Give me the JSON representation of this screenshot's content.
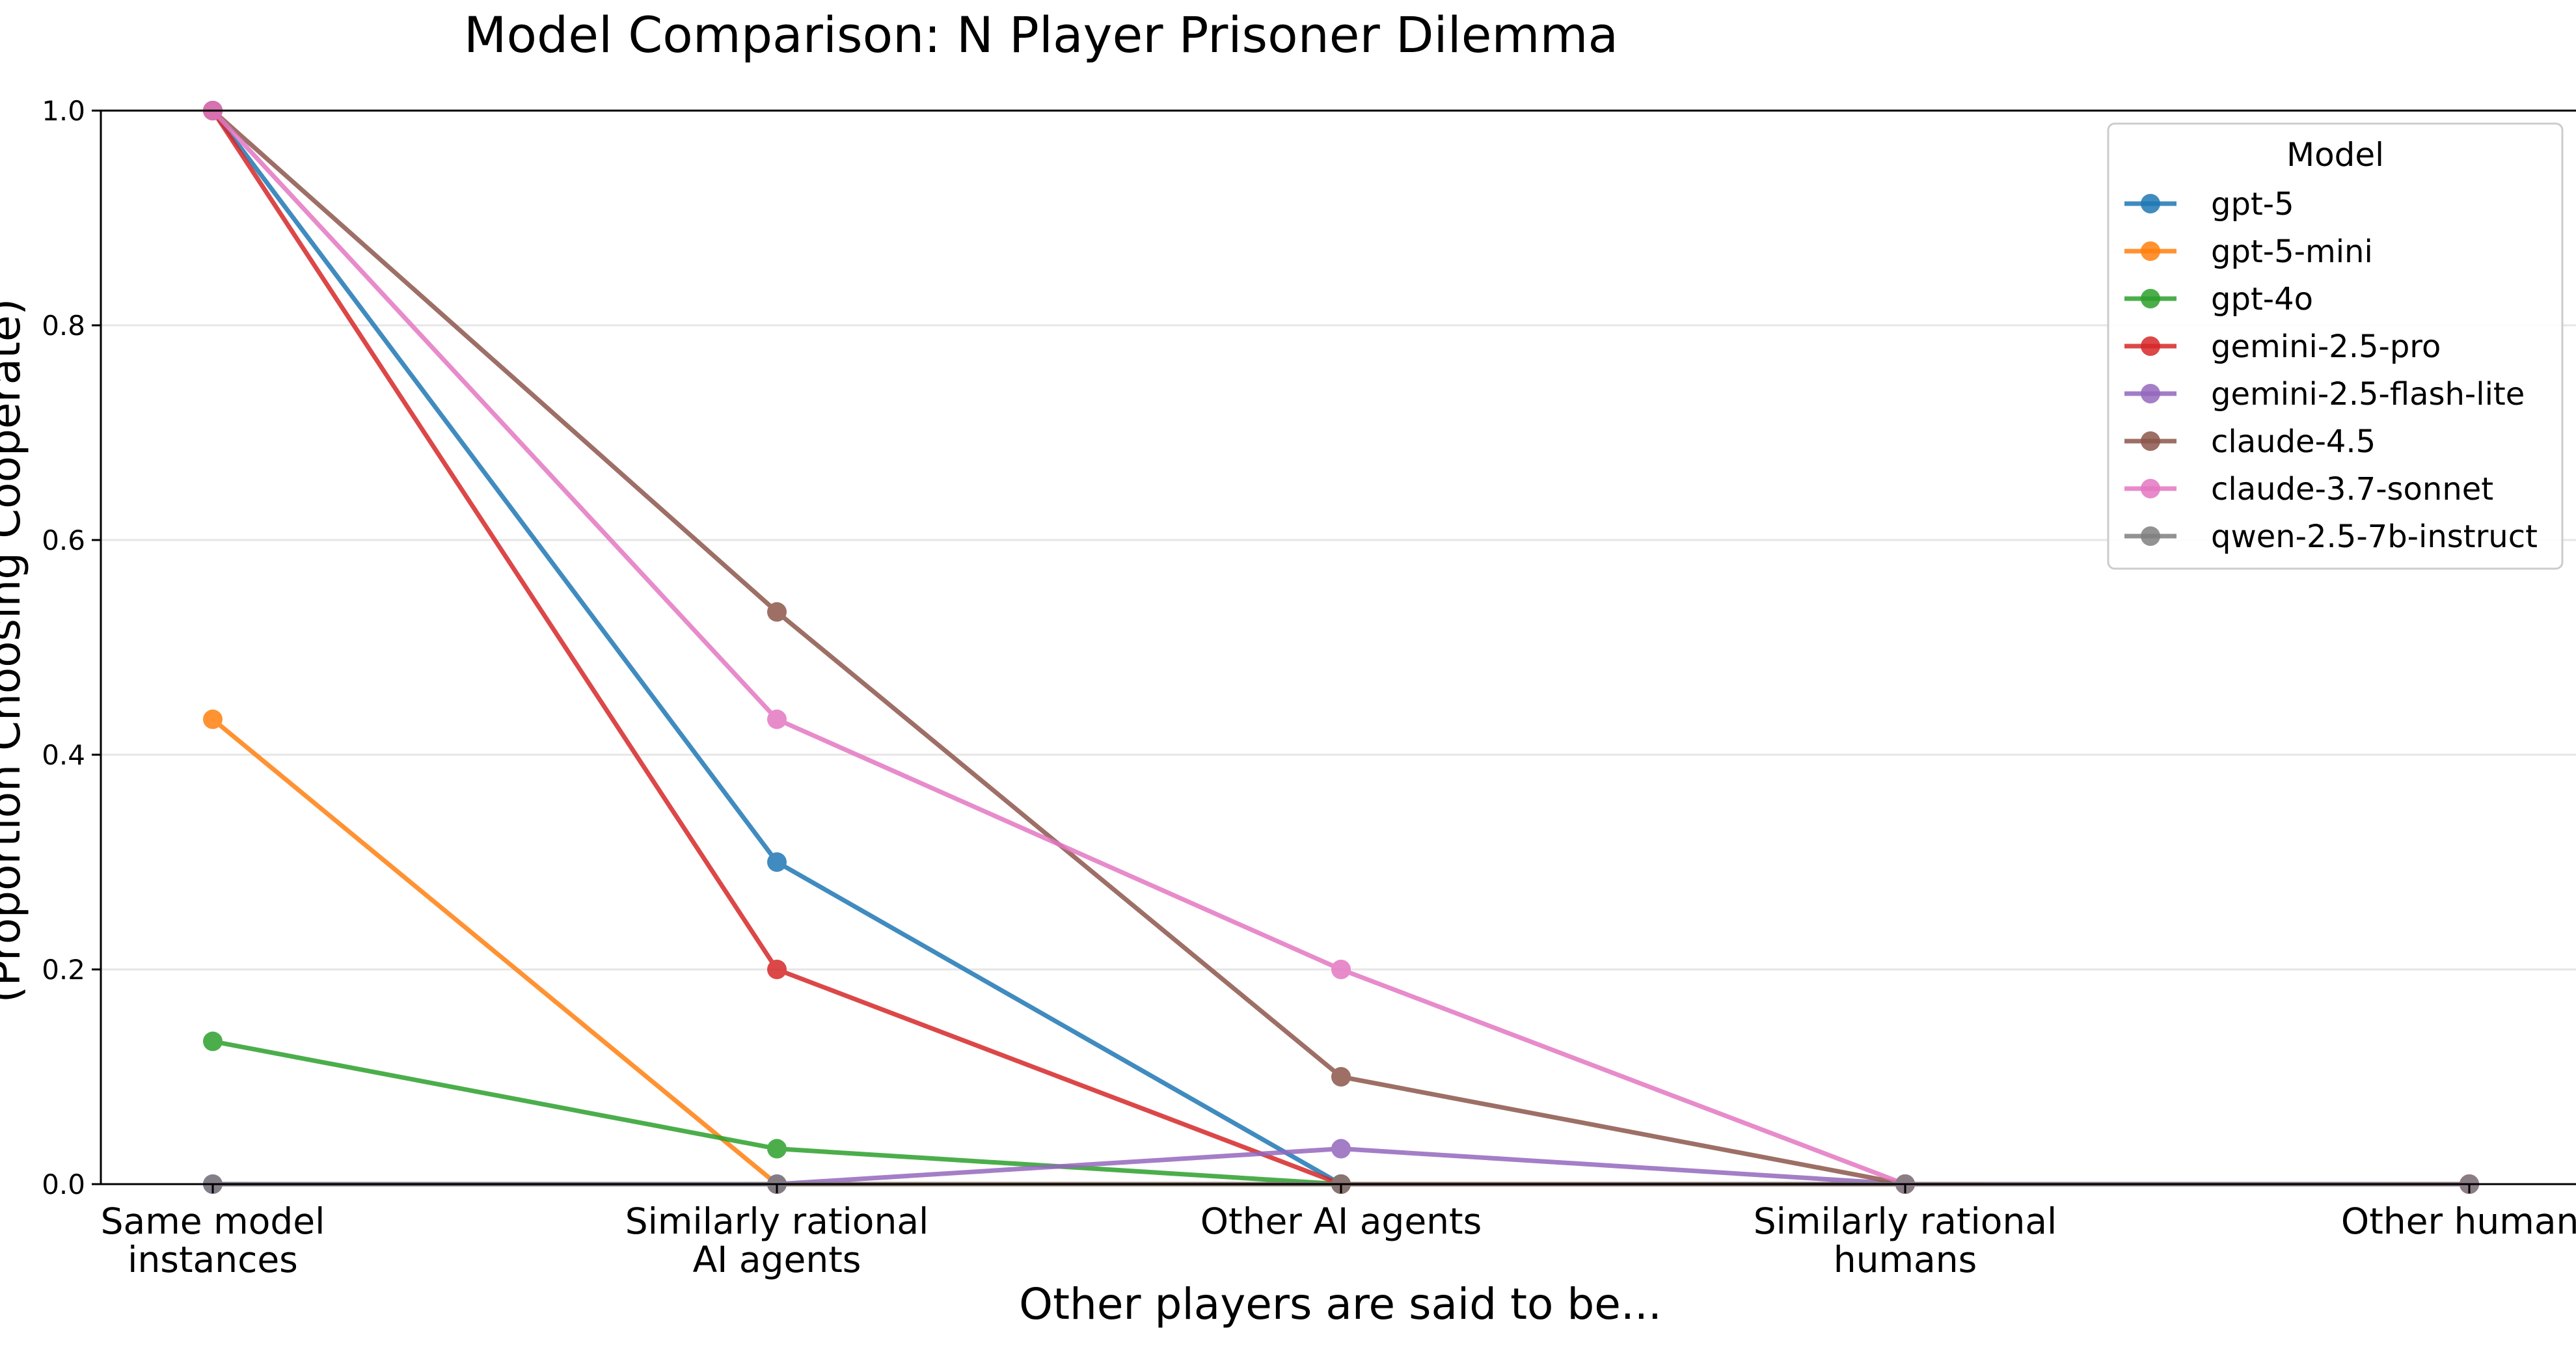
{
  "chart_data": {
    "type": "line",
    "title": "Model Comparison: N Player Prisoner Dilemma",
    "xlabel": "Other players are said to be...",
    "ylabel": "(Proportion Choosing Cooperate)",
    "categories": [
      [
        "Same model",
        "instances"
      ],
      [
        "Similarly rational",
        "AI agents"
      ],
      [
        "Other AI agents"
      ],
      [
        "Similarly rational",
        "humans"
      ],
      [
        "Other humans"
      ]
    ],
    "ylim": [
      0,
      1.0
    ],
    "yticks": [
      "0.0",
      "0.2",
      "0.4",
      "0.6",
      "0.8",
      "1.0"
    ],
    "grid": "horizontal",
    "legend": {
      "title": "Model",
      "placement": "top-right"
    },
    "series": [
      {
        "name": "gpt-5",
        "color": "#1f77b4",
        "values": [
          1.0,
          0.3,
          0.0,
          0.0,
          0.0
        ]
      },
      {
        "name": "gpt-5-mini",
        "color": "#ff7f0e",
        "values": [
          0.433,
          0.0,
          0.0,
          0.0,
          0.0
        ]
      },
      {
        "name": "gpt-4o",
        "color": "#2ca02c",
        "values": [
          0.133,
          0.033,
          0.0,
          0.0,
          0.0
        ]
      },
      {
        "name": "gemini-2.5-pro",
        "color": "#d62728",
        "values": [
          1.0,
          0.2,
          0.0,
          0.0,
          0.0
        ]
      },
      {
        "name": "gemini-2.5-flash-lite",
        "color": "#9467bd",
        "values": [
          0.0,
          0.0,
          0.033,
          0.0,
          0.0
        ]
      },
      {
        "name": "claude-4.5",
        "color": "#8c564b",
        "values": [
          1.0,
          0.533,
          0.1,
          0.0,
          0.0
        ]
      },
      {
        "name": "claude-3.7-sonnet",
        "color": "#e377c2",
        "values": [
          1.0,
          0.433,
          0.2,
          0.0,
          0.0
        ]
      },
      {
        "name": "qwen-2.5-7b-instruct",
        "color": "#7f7f7f",
        "values": [
          0.0,
          0.0,
          0.0,
          0.0,
          0.0
        ]
      }
    ]
  }
}
